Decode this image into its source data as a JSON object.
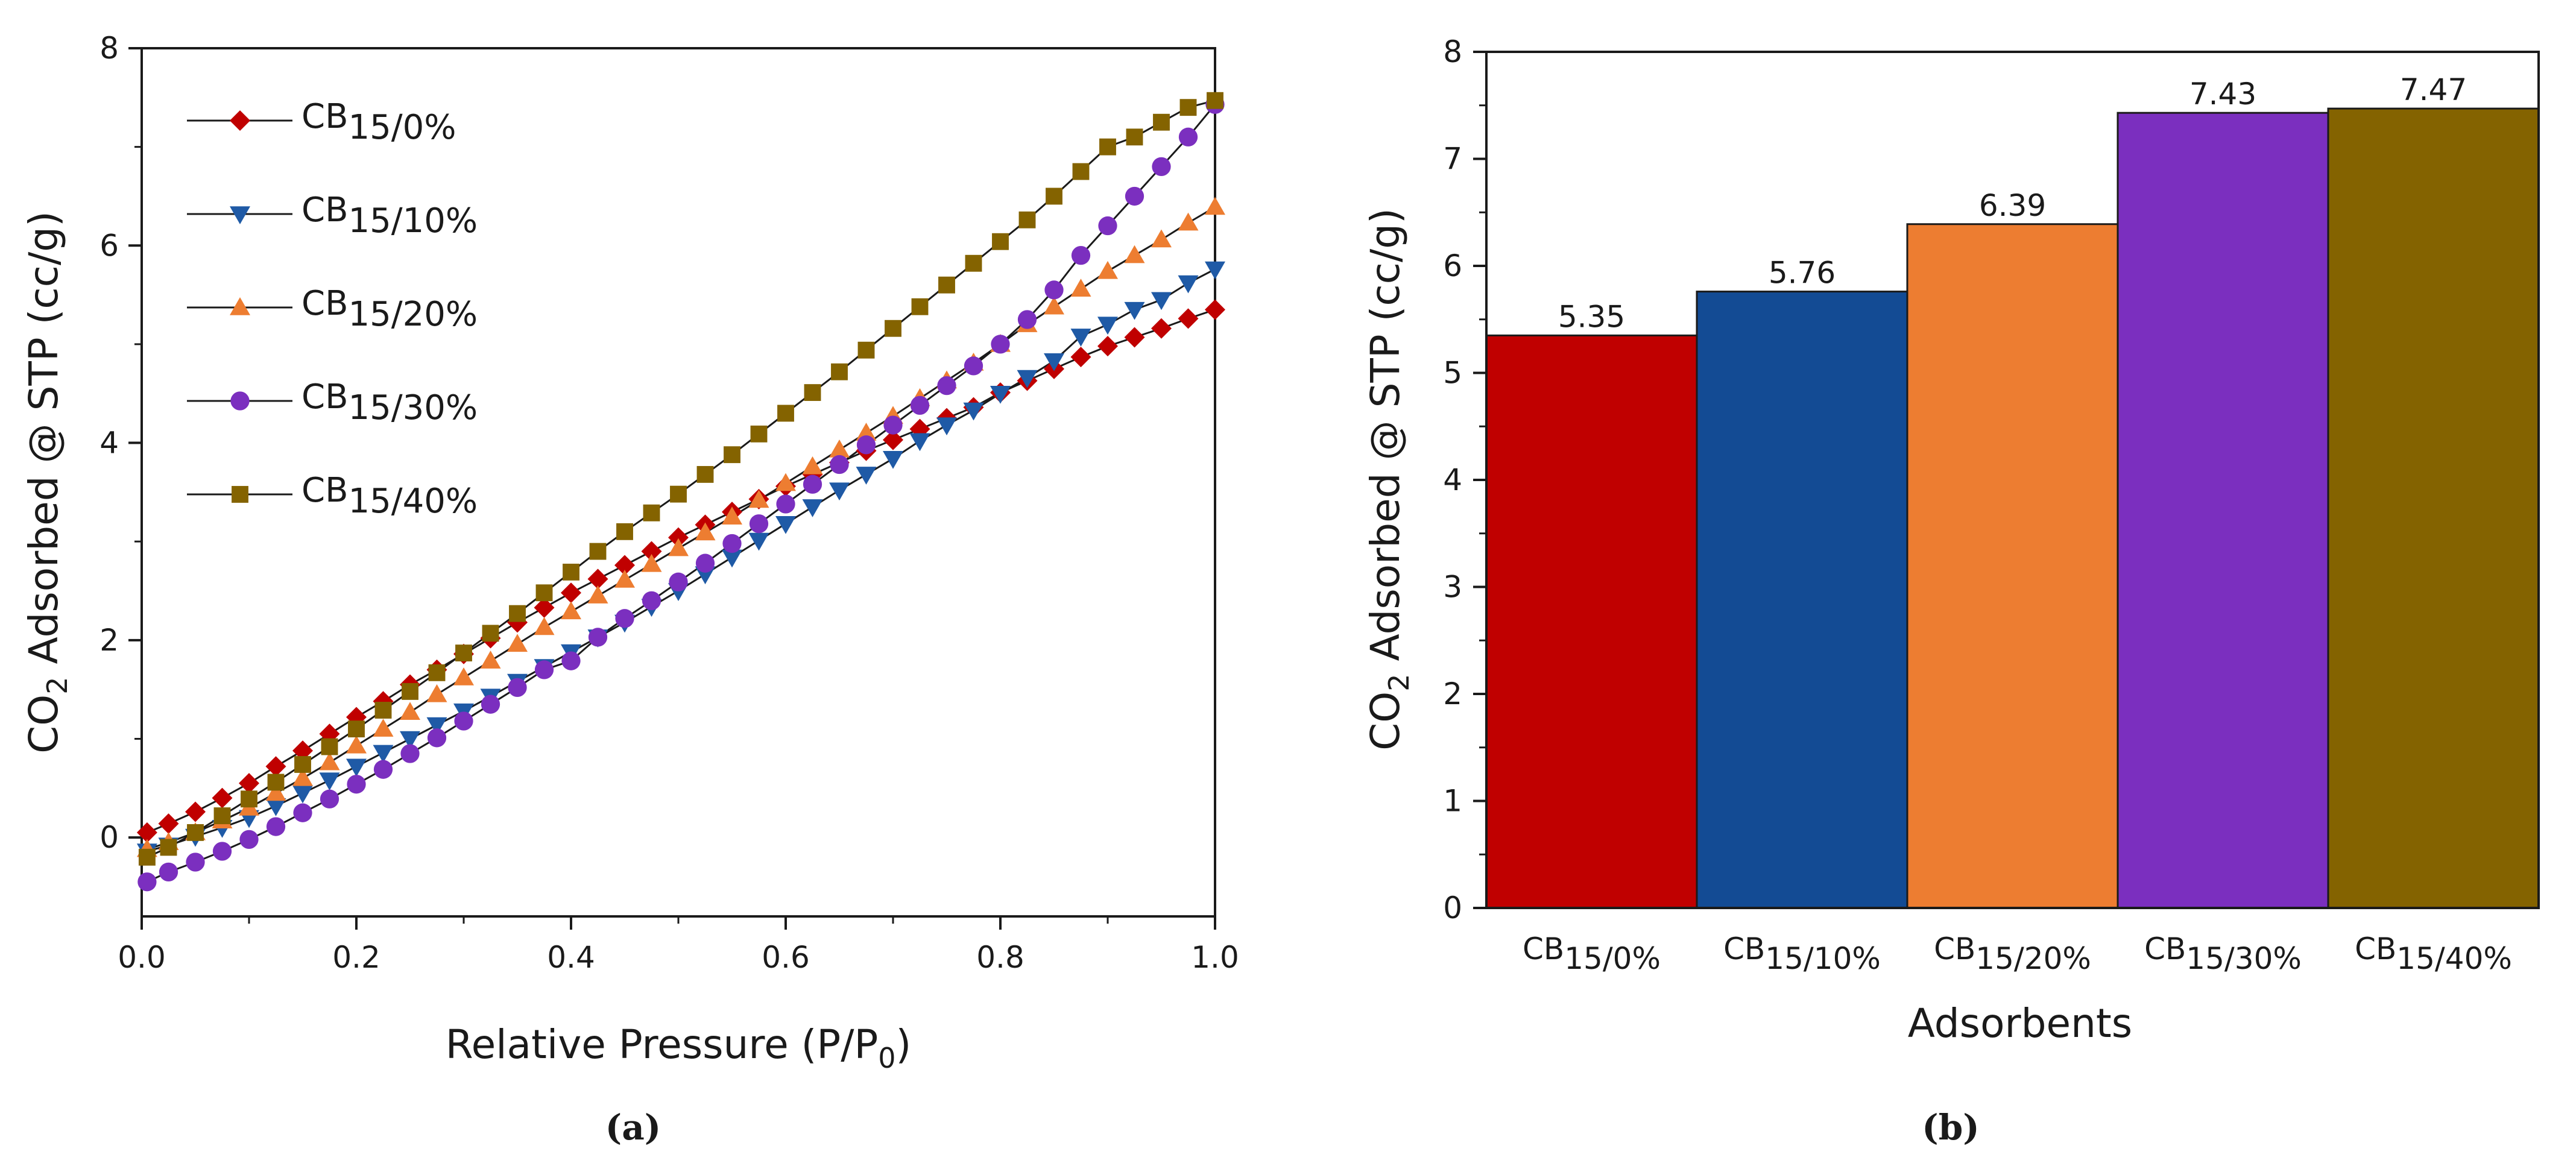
{
  "chart_data": [
    {
      "type": "line",
      "panel_label": "(a)",
      "title": "",
      "xlabel": "Relative Pressure (P/P0)",
      "ylabel": "CO2 Adsorbed @ STP (cc/g)",
      "xlim": [
        0.0,
        1.0
      ],
      "ylim": [
        -0.8,
        8.0
      ],
      "xticks": [
        "0.0",
        "0.2",
        "0.4",
        "0.6",
        "0.8",
        "1.0"
      ],
      "yticks": [
        "0",
        "2",
        "4",
        "6",
        "8"
      ],
      "legend_position": "top-left",
      "series": [
        {
          "name_base": "CB",
          "name_sub": "15/0%",
          "marker": "diamond",
          "color": "#c00000",
          "x": [
            0.005,
            0.025,
            0.05,
            0.075,
            0.1,
            0.125,
            0.15,
            0.175,
            0.2,
            0.225,
            0.25,
            0.275,
            0.3,
            0.325,
            0.35,
            0.375,
            0.4,
            0.425,
            0.45,
            0.475,
            0.5,
            0.525,
            0.55,
            0.575,
            0.6,
            0.625,
            0.65,
            0.675,
            0.7,
            0.725,
            0.75,
            0.775,
            0.8,
            0.825,
            0.85,
            0.875,
            0.9,
            0.925,
            0.95,
            0.975,
            1.0
          ],
          "y": [
            0.05,
            0.14,
            0.26,
            0.4,
            0.55,
            0.72,
            0.88,
            1.05,
            1.22,
            1.38,
            1.55,
            1.7,
            1.86,
            2.02,
            2.18,
            2.33,
            2.48,
            2.62,
            2.76,
            2.9,
            3.04,
            3.17,
            3.3,
            3.43,
            3.56,
            3.68,
            3.8,
            3.92,
            4.03,
            4.14,
            4.25,
            4.36,
            4.51,
            4.63,
            4.75,
            4.87,
            4.98,
            5.07,
            5.16,
            5.26,
            5.35
          ]
        },
        {
          "name_base": "CB",
          "name_sub": "15/10%",
          "marker": "triangle-down",
          "color": "#1f5aa6",
          "x": [
            0.005,
            0.025,
            0.05,
            0.075,
            0.1,
            0.125,
            0.15,
            0.175,
            0.2,
            0.225,
            0.25,
            0.275,
            0.3,
            0.325,
            0.35,
            0.375,
            0.4,
            0.425,
            0.45,
            0.475,
            0.5,
            0.525,
            0.55,
            0.575,
            0.6,
            0.625,
            0.65,
            0.675,
            0.7,
            0.725,
            0.75,
            0.775,
            0.8,
            0.825,
            0.85,
            0.875,
            0.9,
            0.925,
            0.95,
            0.975,
            1.0
          ],
          "y": [
            -0.14,
            -0.08,
            0.01,
            0.1,
            0.2,
            0.32,
            0.45,
            0.58,
            0.72,
            0.86,
            1.0,
            1.14,
            1.28,
            1.43,
            1.58,
            1.73,
            1.88,
            2.03,
            2.18,
            2.34,
            2.5,
            2.67,
            2.84,
            3.01,
            3.18,
            3.35,
            3.52,
            3.68,
            3.84,
            4.02,
            4.18,
            4.33,
            4.5,
            4.66,
            4.83,
            5.08,
            5.2,
            5.35,
            5.45,
            5.62,
            5.76
          ]
        },
        {
          "name_base": "CB",
          "name_sub": "15/20%",
          "marker": "triangle-up",
          "color": "#ed7d31",
          "x": [
            0.005,
            0.025,
            0.05,
            0.075,
            0.1,
            0.125,
            0.15,
            0.175,
            0.2,
            0.225,
            0.25,
            0.275,
            0.3,
            0.325,
            0.35,
            0.375,
            0.4,
            0.425,
            0.45,
            0.475,
            0.5,
            0.525,
            0.55,
            0.575,
            0.6,
            0.625,
            0.65,
            0.675,
            0.7,
            0.725,
            0.75,
            0.775,
            0.8,
            0.825,
            0.85,
            0.875,
            0.9,
            0.925,
            0.95,
            0.975,
            1.0
          ],
          "y": [
            -0.12,
            -0.05,
            0.05,
            0.17,
            0.3,
            0.45,
            0.6,
            0.76,
            0.93,
            1.1,
            1.27,
            1.45,
            1.62,
            1.79,
            1.96,
            2.13,
            2.29,
            2.45,
            2.61,
            2.77,
            2.93,
            3.09,
            3.25,
            3.42,
            3.59,
            3.76,
            3.93,
            4.1,
            4.27,
            4.45,
            4.63,
            4.81,
            5.0,
            5.2,
            5.38,
            5.56,
            5.74,
            5.9,
            6.06,
            6.23,
            6.39
          ]
        },
        {
          "name_base": "CB",
          "name_sub": "15/30%",
          "marker": "circle",
          "color": "#7b2fbf",
          "x": [
            0.005,
            0.025,
            0.05,
            0.075,
            0.1,
            0.125,
            0.15,
            0.175,
            0.2,
            0.225,
            0.25,
            0.275,
            0.3,
            0.325,
            0.35,
            0.375,
            0.4,
            0.425,
            0.45,
            0.475,
            0.5,
            0.525,
            0.55,
            0.575,
            0.6,
            0.625,
            0.65,
            0.675,
            0.7,
            0.725,
            0.75,
            0.775,
            0.8,
            0.825,
            0.85,
            0.875,
            0.9,
            0.925,
            0.95,
            0.975,
            1.0
          ],
          "y": [
            -0.45,
            -0.35,
            -0.25,
            -0.14,
            -0.02,
            0.11,
            0.25,
            0.39,
            0.54,
            0.69,
            0.85,
            1.01,
            1.18,
            1.35,
            1.52,
            1.7,
            1.79,
            2.03,
            2.22,
            2.4,
            2.59,
            2.78,
            2.98,
            3.18,
            3.38,
            3.58,
            3.78,
            3.98,
            4.18,
            4.38,
            4.58,
            4.78,
            5.0,
            5.25,
            5.55,
            5.9,
            6.2,
            6.5,
            6.8,
            7.1,
            7.43
          ]
        },
        {
          "name_base": "CB",
          "name_sub": "15/40%",
          "marker": "square",
          "color": "#846300",
          "x": [
            0.005,
            0.025,
            0.05,
            0.075,
            0.1,
            0.125,
            0.15,
            0.175,
            0.2,
            0.225,
            0.25,
            0.275,
            0.3,
            0.325,
            0.35,
            0.375,
            0.4,
            0.425,
            0.45,
            0.475,
            0.5,
            0.525,
            0.55,
            0.575,
            0.6,
            0.625,
            0.65,
            0.675,
            0.7,
            0.725,
            0.75,
            0.775,
            0.8,
            0.825,
            0.85,
            0.875,
            0.9,
            0.925,
            0.95,
            0.975,
            1.0
          ],
          "y": [
            -0.2,
            -0.1,
            0.05,
            0.22,
            0.39,
            0.56,
            0.74,
            0.92,
            1.1,
            1.29,
            1.48,
            1.67,
            1.87,
            2.07,
            2.27,
            2.48,
            2.69,
            2.9,
            3.1,
            3.29,
            3.48,
            3.68,
            3.88,
            4.09,
            4.3,
            4.51,
            4.72,
            4.94,
            5.16,
            5.38,
            5.6,
            5.82,
            6.04,
            6.26,
            6.5,
            6.75,
            7.0,
            7.1,
            7.25,
            7.4,
            7.47
          ]
        }
      ]
    },
    {
      "type": "bar",
      "panel_label": "(b)",
      "title": "",
      "xlabel": "Adsorbents",
      "ylabel": "CO2 Adsorbed @ STP (cc/g)",
      "ylim": [
        0,
        8
      ],
      "yticks": [
        "0",
        "1",
        "2",
        "3",
        "4",
        "5",
        "6",
        "7",
        "8"
      ],
      "categories": [
        {
          "base": "CB",
          "sub": "15/0%"
        },
        {
          "base": "CB",
          "sub": "15/10%"
        },
        {
          "base": "CB",
          "sub": "15/20%"
        },
        {
          "base": "CB",
          "sub": "15/30%"
        },
        {
          "base": "CB",
          "sub": "15/40%"
        }
      ],
      "values": [
        5.35,
        5.76,
        6.39,
        7.43,
        7.47
      ],
      "value_labels": [
        "5.35",
        "5.76",
        "6.39",
        "7.43",
        "7.47"
      ],
      "colors": [
        "#c00000",
        "#134b94",
        "#ed7d31",
        "#7b2fbf",
        "#846300"
      ]
    }
  ]
}
